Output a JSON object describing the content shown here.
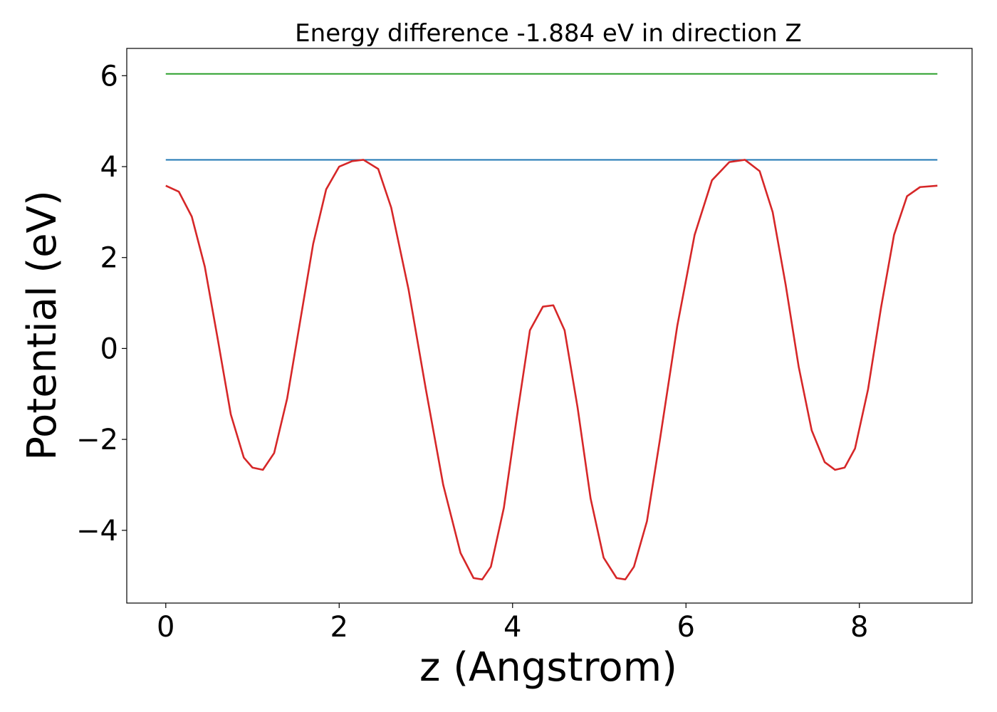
{
  "chart_data": {
    "type": "line",
    "title": "Energy difference -1.884 eV in direction Z",
    "xlabel": "z (Angstrom)",
    "ylabel": "Potential (eV)",
    "xlim": [
      -0.45,
      9.3
    ],
    "ylim": [
      -5.6,
      6.6
    ],
    "xticks": [
      0,
      2,
      4,
      6,
      8
    ],
    "yticks": [
      -4,
      -2,
      0,
      2,
      4,
      6
    ],
    "xtick_labels": [
      "0",
      "2",
      "4",
      "6",
      "8"
    ],
    "ytick_labels": [
      "−4",
      "−2",
      "0",
      "2",
      "4",
      "6"
    ],
    "grid": false,
    "legend": false,
    "series": [
      {
        "color": "#2ca02c",
        "x": [
          0,
          8.9
        ],
        "y": [
          6.04,
          6.04
        ]
      },
      {
        "color": "#1f77b4",
        "x": [
          0,
          8.9
        ],
        "y": [
          4.15,
          4.15
        ]
      },
      {
        "color": "#d62728",
        "x": [
          0,
          0.15,
          0.3,
          0.45,
          0.6,
          0.75,
          0.9,
          1.0,
          1.12,
          1.25,
          1.4,
          1.55,
          1.7,
          1.85,
          2.0,
          2.15,
          2.28,
          2.45,
          2.6,
          2.8,
          3.0,
          3.2,
          3.4,
          3.55,
          3.65,
          3.75,
          3.9,
          4.05,
          4.2,
          4.35,
          4.47,
          4.6,
          4.75,
          4.9,
          5.05,
          5.2,
          5.3,
          5.4,
          5.55,
          5.7,
          5.9,
          6.1,
          6.3,
          6.5,
          6.68,
          6.85,
          7.0,
          7.15,
          7.3,
          7.45,
          7.6,
          7.72,
          7.83,
          7.95,
          8.1,
          8.25,
          8.4,
          8.55,
          8.7,
          8.9
        ],
        "y": [
          3.58,
          3.45,
          2.9,
          1.8,
          0.2,
          -1.45,
          -2.4,
          -2.62,
          -2.67,
          -2.3,
          -1.1,
          0.6,
          2.3,
          3.5,
          4.0,
          4.12,
          4.15,
          3.95,
          3.1,
          1.3,
          -0.9,
          -3.0,
          -4.5,
          -5.05,
          -5.08,
          -4.8,
          -3.5,
          -1.5,
          0.4,
          0.92,
          0.95,
          0.4,
          -1.3,
          -3.3,
          -4.6,
          -5.05,
          -5.08,
          -4.8,
          -3.8,
          -2.0,
          0.5,
          2.5,
          3.7,
          4.1,
          4.15,
          3.9,
          3.0,
          1.4,
          -0.4,
          -1.8,
          -2.5,
          -2.67,
          -2.62,
          -2.2,
          -0.9,
          0.9,
          2.5,
          3.35,
          3.55,
          3.58
        ]
      }
    ]
  }
}
